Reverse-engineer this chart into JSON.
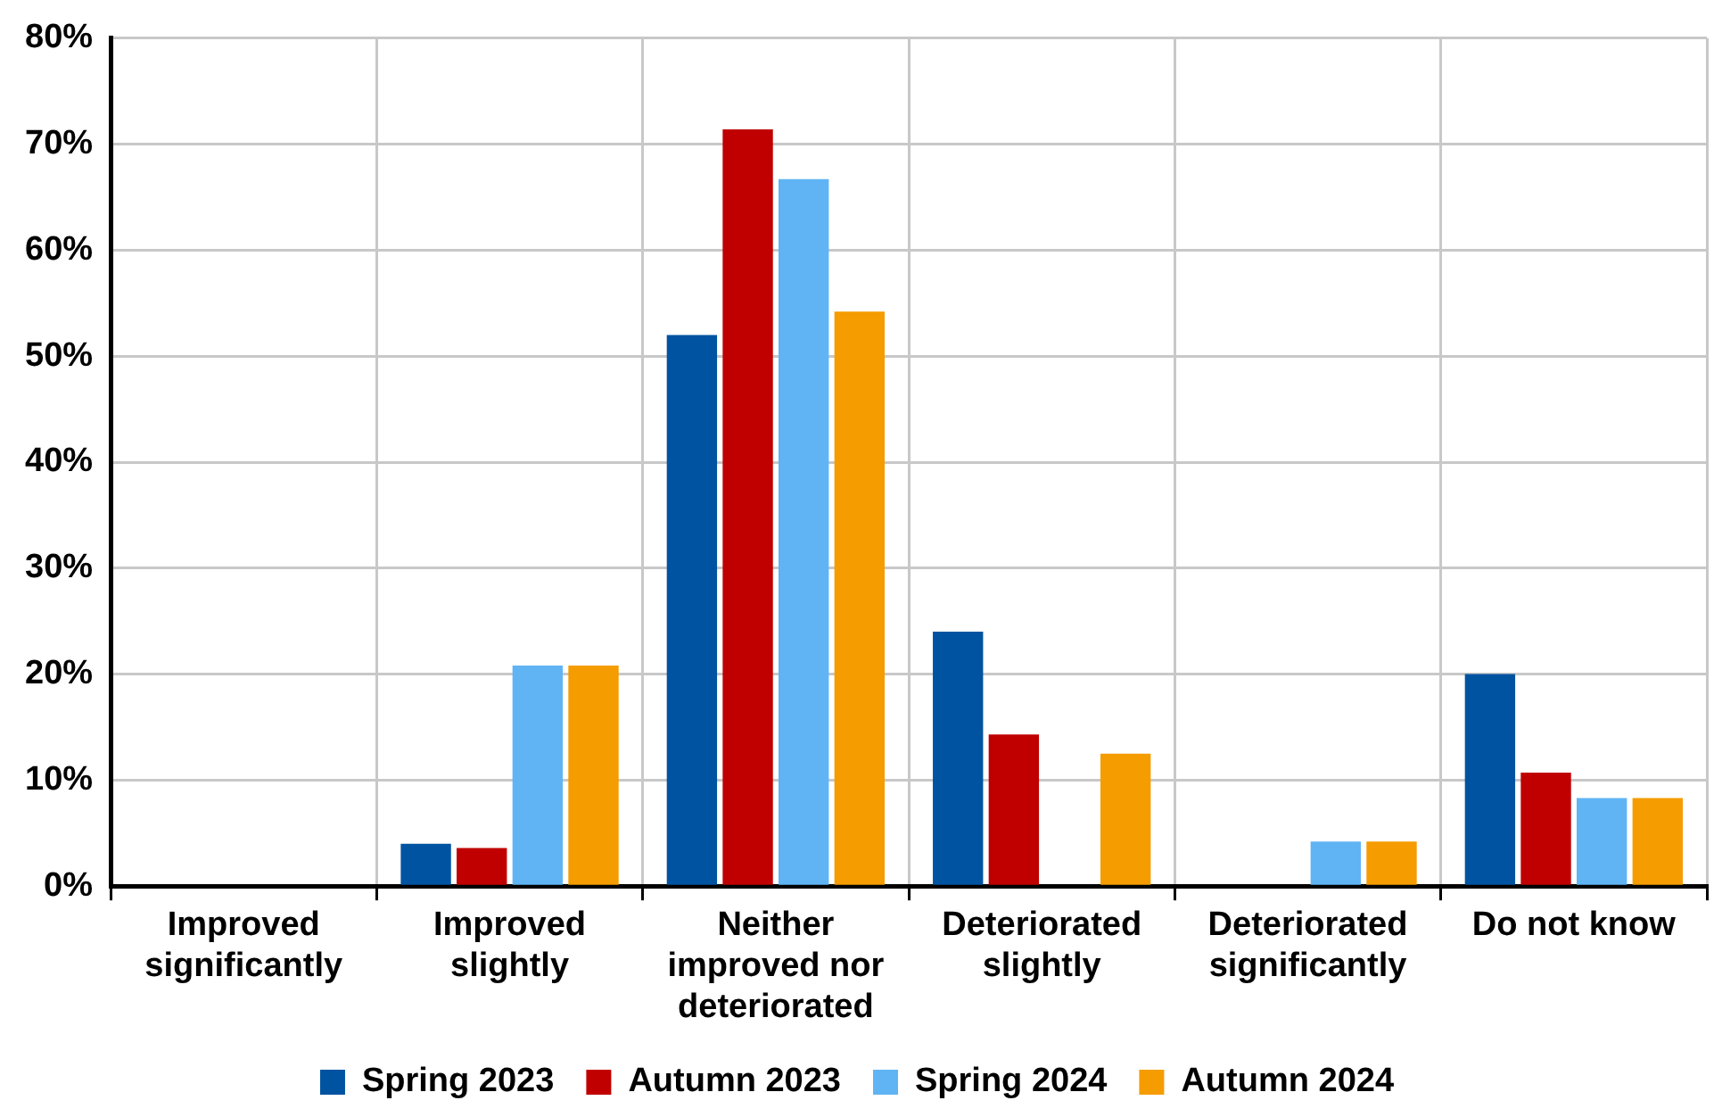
{
  "chart_data": {
    "type": "bar",
    "categories": [
      "Improved significantly",
      "Improved slightly",
      "Neither improved nor deteriorated",
      "Deteriorated slightly",
      "Deteriorated significantly",
      "Do not know"
    ],
    "series": [
      {
        "name": "Spring 2023",
        "color": "#0053a0",
        "values": [
          0,
          4.0,
          52.0,
          24.0,
          0,
          20.0
        ]
      },
      {
        "name": "Autumn 2023",
        "color": "#c00000",
        "values": [
          0,
          3.6,
          71.4,
          14.3,
          0,
          10.7
        ]
      },
      {
        "name": "Spring 2024",
        "color": "#60b4f4",
        "values": [
          0,
          20.8,
          66.7,
          0,
          4.2,
          8.3
        ]
      },
      {
        "name": "Autumn 2024",
        "color": "#f59c00",
        "values": [
          0,
          20.8,
          54.2,
          12.5,
          4.2,
          8.3
        ]
      }
    ],
    "ylim": [
      0,
      80
    ],
    "yticks": [
      {
        "value": 0,
        "label": "0%"
      },
      {
        "value": 10,
        "label": "10%"
      },
      {
        "value": 20,
        "label": "20%"
      },
      {
        "value": 30,
        "label": "30%"
      },
      {
        "value": 40,
        "label": "40%"
      },
      {
        "value": 50,
        "label": "50%"
      },
      {
        "value": 60,
        "label": "60%"
      },
      {
        "value": 70,
        "label": "70%"
      },
      {
        "value": 80,
        "label": "80%"
      }
    ],
    "grid": true,
    "legend": "bottom"
  }
}
